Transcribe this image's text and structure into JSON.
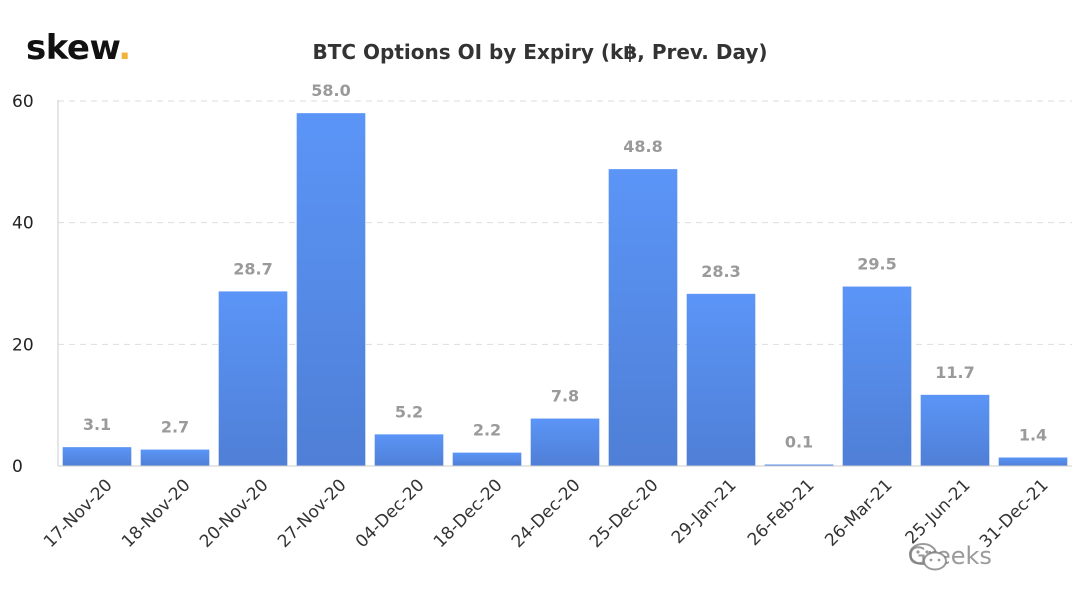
{
  "logo": {
    "text": "skew",
    "dot": "."
  },
  "watermark": {
    "text": "Greeks",
    "icon": "wechat-icon"
  },
  "colors": {
    "bar_top": "#5b95f7",
    "bar_bottom": "#4f7fd6",
    "label": "#9a9a9a",
    "grid": "#dddddd",
    "logo_dot": "#f2b33d"
  },
  "chart_data": {
    "type": "bar",
    "title": "BTC Options OI by Expiry (k฿, Prev. Day)",
    "xlabel": "",
    "ylabel": "",
    "categories": [
      "17-Nov-20",
      "18-Nov-20",
      "20-Nov-20",
      "27-Nov-20",
      "04-Dec-20",
      "18-Dec-20",
      "24-Dec-20",
      "25-Dec-20",
      "29-Jan-21",
      "26-Feb-21",
      "26-Mar-21",
      "25-Jun-21",
      "31-Dec-21"
    ],
    "values": [
      3.1,
      2.7,
      28.7,
      58.0,
      5.2,
      2.2,
      7.8,
      48.8,
      28.3,
      0.1,
      29.5,
      11.7,
      1.4
    ],
    "value_labels": [
      "3.1",
      "2.7",
      "28.7",
      "58.0",
      "5.2",
      "2.2",
      "7.8",
      "48.8",
      "28.3",
      "0.1",
      "29.5",
      "11.7",
      "1.4"
    ],
    "ylim": [
      0,
      60
    ],
    "yticks": [
      0,
      20,
      40,
      60
    ],
    "ytick_labels": [
      "0",
      "20",
      "40",
      "60"
    ],
    "grid": true,
    "grid_style": "dashed-horizontal"
  }
}
